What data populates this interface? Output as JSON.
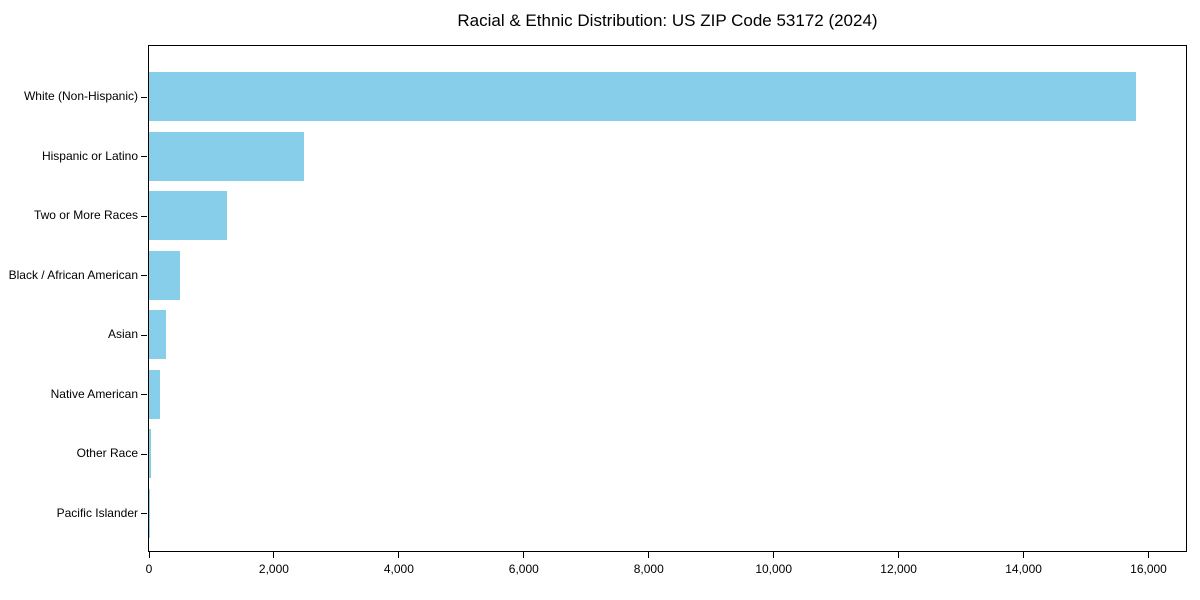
{
  "chart_data": {
    "type": "bar",
    "orientation": "horizontal",
    "title": "Racial & Ethnic Distribution: US ZIP Code 53172 (2024)",
    "categories": [
      "White (Non-Hispanic)",
      "Hispanic or Latino",
      "Two or More Races",
      "Black / African American",
      "Asian",
      "Native American",
      "Other Race",
      "Pacific Islander"
    ],
    "values": [
      15800,
      2480,
      1250,
      500,
      280,
      170,
      30,
      8
    ],
    "xlabel": "",
    "ylabel": "",
    "xlim": [
      0,
      16600
    ],
    "x_ticks": [
      0,
      2000,
      4000,
      6000,
      8000,
      10000,
      12000,
      14000,
      16000
    ],
    "x_tick_labels": [
      "0",
      "2,000",
      "4,000",
      "6,000",
      "8,000",
      "10,000",
      "12,000",
      "14,000",
      "16,000"
    ],
    "bar_color": "#87CEEB",
    "grid": false,
    "legend": null,
    "background_color": "#ffffff"
  }
}
